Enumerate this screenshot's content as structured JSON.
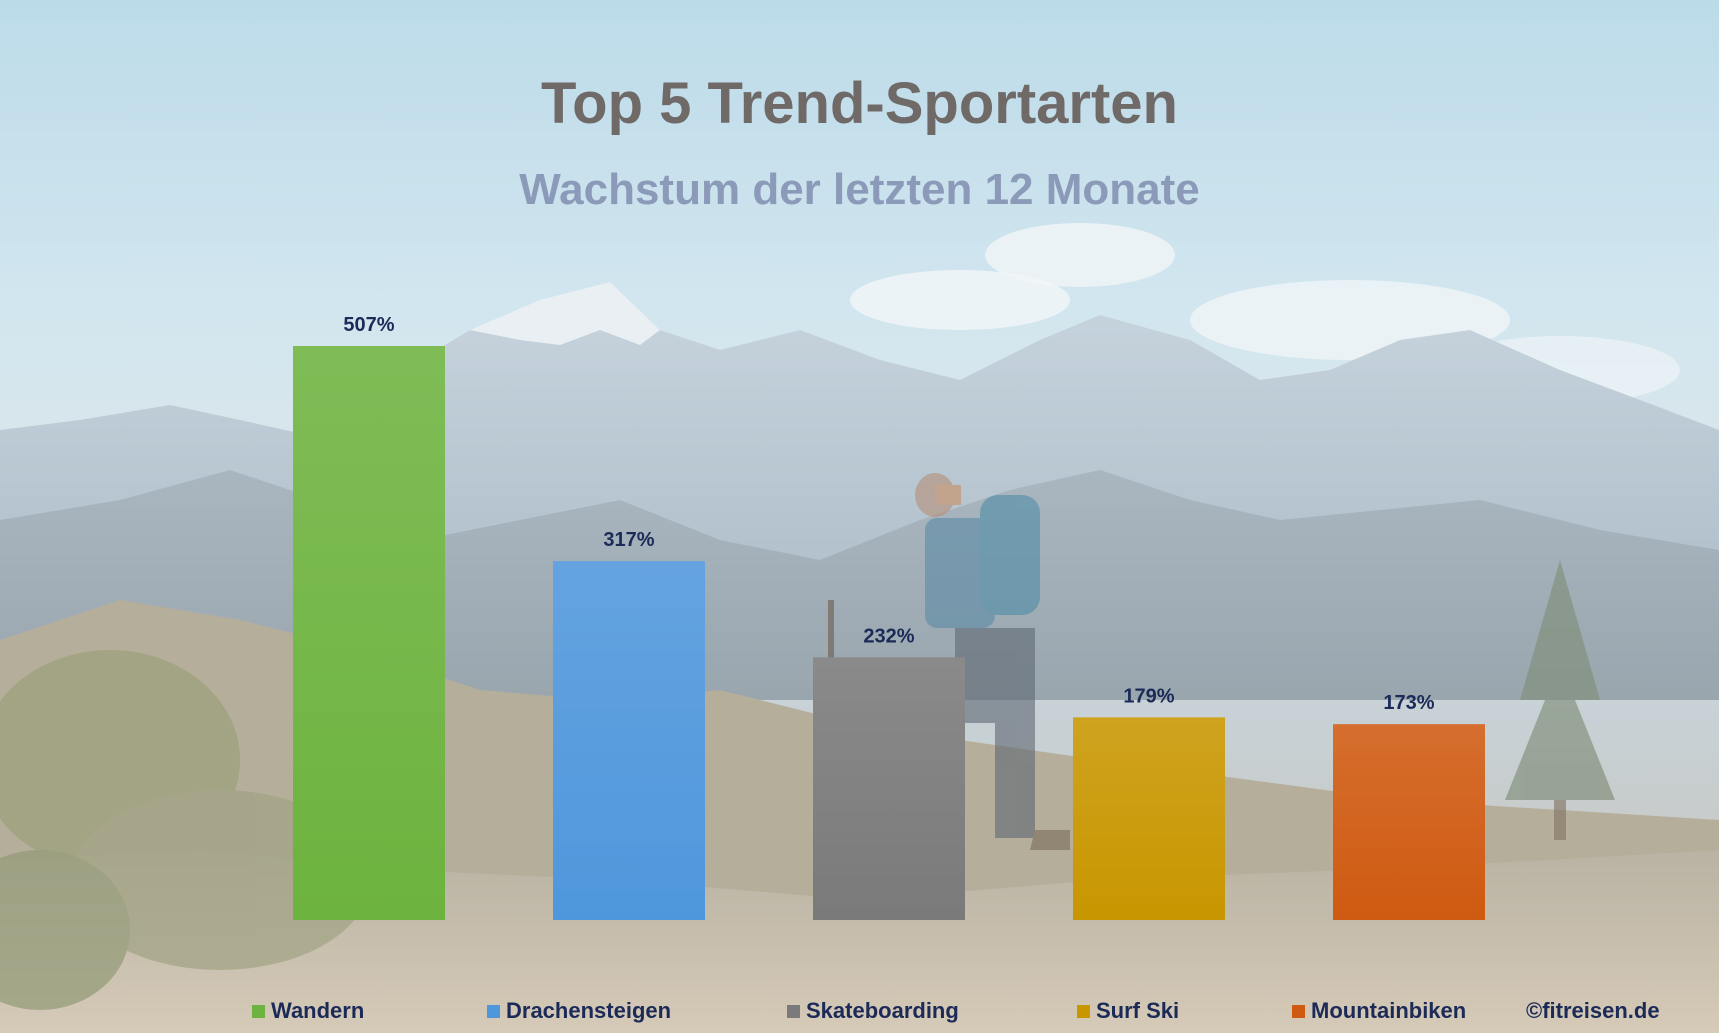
{
  "chart_data": {
    "type": "bar",
    "title": "Top 5 Trend-Sportarten",
    "subtitle": "Wachstum der letzten 12 Monate",
    "categories": [
      "Wandern",
      "Drachensteigen",
      "Skateboarding",
      "Surf Ski",
      "Mountainbiken"
    ],
    "values": [
      507,
      317,
      232,
      179,
      173
    ],
    "value_labels": [
      "507%",
      "317%",
      "232%",
      "179%",
      "173%"
    ],
    "colors": [
      "#6db33f",
      "#4f97dc",
      "#7a7a7a",
      "#c89600",
      "#cf5a11"
    ],
    "ylim": [
      0,
      507
    ],
    "grid": false,
    "legend_position": "bottom"
  },
  "credit": "©fitreisen.de"
}
